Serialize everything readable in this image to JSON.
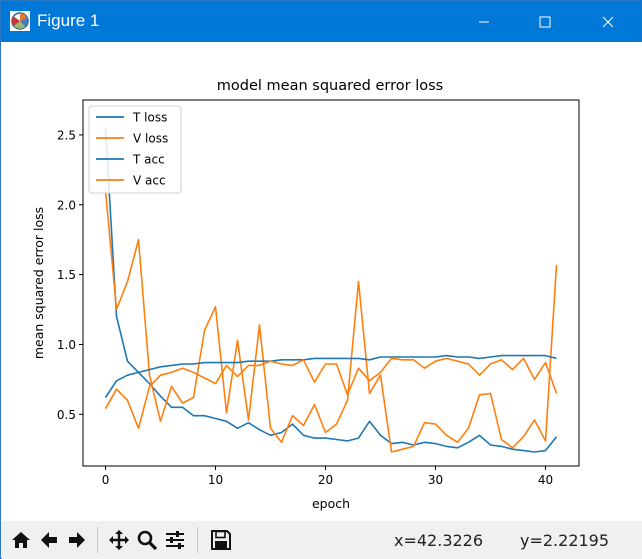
{
  "window": {
    "title": "Figure 1"
  },
  "status": {
    "x": "x=42.3226",
    "y": "y=2.22195"
  },
  "toolbar": {
    "buttons": [
      "home-icon",
      "back-icon",
      "forward-icon",
      "pan-icon",
      "zoom-icon",
      "configure-subplots-icon",
      "save-icon"
    ]
  },
  "colors": {
    "titlebar": "#0078d7",
    "series_blue": "#1f77b4",
    "series_orange": "#ff7f0e"
  },
  "chart_data": {
    "type": "line",
    "title": "model mean squared error loss",
    "xlabel": "epoch",
    "ylabel": "mean squared error loss",
    "xlim": [
      -2.05,
      43.05
    ],
    "ylim": [
      0.13,
      2.75
    ],
    "xticks": [
      0,
      10,
      20,
      30,
      40
    ],
    "yticks": [
      0.5,
      1.0,
      1.5,
      2.0,
      2.5
    ],
    "ytick_labels": [
      "0.5",
      "1.0",
      "1.5",
      "2.0",
      "2.5"
    ],
    "legend": "upper-left",
    "grid": false,
    "series": [
      {
        "name": "T loss",
        "color": "#1f77b4",
        "x": [
          0,
          1,
          2,
          3,
          4,
          5,
          6,
          7,
          8,
          9,
          10,
          11,
          12,
          13,
          14,
          15,
          16,
          17,
          18,
          19,
          20,
          21,
          22,
          23,
          24,
          25,
          26,
          27,
          28,
          29,
          30,
          31,
          32,
          33,
          34,
          35,
          36,
          37,
          38,
          39,
          40,
          41
        ],
        "y": [
          2.55,
          1.2,
          0.88,
          0.8,
          0.72,
          0.63,
          0.55,
          0.55,
          0.49,
          0.49,
          0.47,
          0.45,
          0.4,
          0.44,
          0.39,
          0.35,
          0.37,
          0.43,
          0.35,
          0.33,
          0.33,
          0.32,
          0.31,
          0.33,
          0.45,
          0.35,
          0.29,
          0.3,
          0.28,
          0.3,
          0.29,
          0.27,
          0.26,
          0.3,
          0.35,
          0.28,
          0.27,
          0.25,
          0.24,
          0.23,
          0.24,
          0.34
        ]
      },
      {
        "name": "V loss",
        "color": "#ff7f0e",
        "x": [
          0,
          1,
          2,
          3,
          4,
          5,
          6,
          7,
          8,
          9,
          10,
          11,
          12,
          13,
          14,
          15,
          16,
          17,
          18,
          19,
          20,
          21,
          22,
          23,
          24,
          25,
          26,
          27,
          28,
          29,
          30,
          31,
          32,
          33,
          34,
          35,
          36,
          37,
          38,
          39,
          40,
          41
        ],
        "y": [
          2.1,
          1.25,
          1.45,
          1.75,
          0.78,
          0.45,
          0.7,
          0.58,
          0.62,
          1.1,
          1.27,
          0.51,
          1.03,
          0.46,
          1.14,
          0.4,
          0.3,
          0.49,
          0.42,
          0.57,
          0.37,
          0.43,
          0.6,
          1.45,
          0.65,
          0.78,
          0.23,
          0.25,
          0.27,
          0.44,
          0.43,
          0.35,
          0.3,
          0.4,
          0.64,
          0.65,
          0.32,
          0.26,
          0.34,
          0.46,
          0.31,
          1.57
        ]
      },
      {
        "name": "T acc",
        "color": "#1f77b4",
        "x": [
          0,
          1,
          2,
          3,
          4,
          5,
          6,
          7,
          8,
          9,
          10,
          11,
          12,
          13,
          14,
          15,
          16,
          17,
          18,
          19,
          20,
          21,
          22,
          23,
          24,
          25,
          26,
          27,
          28,
          29,
          30,
          31,
          32,
          33,
          34,
          35,
          36,
          37,
          38,
          39,
          40,
          41
        ],
        "y": [
          0.62,
          0.74,
          0.78,
          0.8,
          0.82,
          0.84,
          0.85,
          0.86,
          0.86,
          0.87,
          0.87,
          0.87,
          0.87,
          0.88,
          0.88,
          0.88,
          0.89,
          0.89,
          0.89,
          0.9,
          0.9,
          0.9,
          0.9,
          0.9,
          0.89,
          0.91,
          0.91,
          0.91,
          0.91,
          0.91,
          0.91,
          0.92,
          0.91,
          0.91,
          0.9,
          0.91,
          0.92,
          0.92,
          0.92,
          0.92,
          0.92,
          0.9
        ]
      },
      {
        "name": "V acc",
        "color": "#ff7f0e",
        "x": [
          0,
          1,
          2,
          3,
          4,
          5,
          6,
          7,
          8,
          9,
          10,
          11,
          12,
          13,
          14,
          15,
          16,
          17,
          18,
          19,
          20,
          21,
          22,
          23,
          24,
          25,
          26,
          27,
          28,
          29,
          30,
          31,
          32,
          33,
          34,
          35,
          36,
          37,
          38,
          39,
          40,
          41
        ],
        "y": [
          0.54,
          0.68,
          0.6,
          0.4,
          0.7,
          0.78,
          0.8,
          0.83,
          0.8,
          0.76,
          0.72,
          0.85,
          0.77,
          0.85,
          0.85,
          0.88,
          0.86,
          0.85,
          0.89,
          0.73,
          0.86,
          0.86,
          0.64,
          0.83,
          0.74,
          0.8,
          0.9,
          0.89,
          0.89,
          0.83,
          0.88,
          0.9,
          0.88,
          0.86,
          0.78,
          0.86,
          0.89,
          0.82,
          0.9,
          0.75,
          0.87,
          0.65
        ]
      }
    ]
  }
}
